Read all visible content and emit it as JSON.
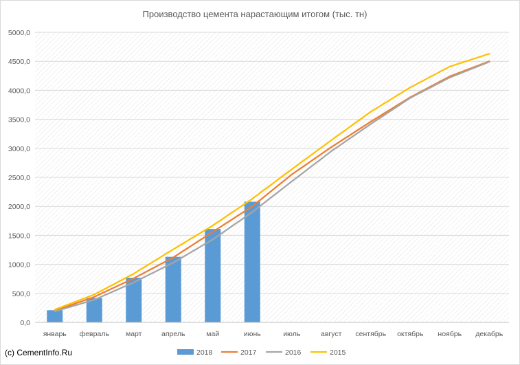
{
  "chart_data": {
    "type": "bar",
    "title": "Производство цемента нарастающим итогом (тыс. тн)",
    "categories": [
      "январь",
      "февраль",
      "март",
      "апрель",
      "май",
      "июнь",
      "июль",
      "август",
      "сентябрь",
      "октябрь",
      "ноябрь",
      "декабрь"
    ],
    "ylim": [
      0,
      5000
    ],
    "yticks": [
      "0,0",
      "500,0",
      "1000,0",
      "1500,0",
      "2000,0",
      "2500,0",
      "3000,0",
      "3500,0",
      "4000,0",
      "4500,0",
      "5000,0"
    ],
    "grid": true,
    "legend_position": "bottom",
    "series": [
      {
        "name": "2018",
        "kind": "bar",
        "color": "#5b9bd5",
        "values": [
          210,
          420,
          770,
          1130,
          1610,
          2080,
          null,
          null,
          null,
          null,
          null,
          null
        ]
      },
      {
        "name": "2017",
        "kind": "line",
        "color": "#ed7d31",
        "values": [
          200,
          440,
          760,
          1120,
          1560,
          2000,
          2550,
          3020,
          3460,
          3880,
          4240,
          4500
        ]
      },
      {
        "name": "2016",
        "kind": "line",
        "color": "#a5a5a5",
        "values": [
          190,
          390,
          690,
          1030,
          1430,
          1900,
          2430,
          2950,
          3420,
          3870,
          4220,
          4490
        ]
      },
      {
        "name": "2015",
        "kind": "line",
        "color": "#ffc000",
        "values": [
          220,
          480,
          840,
          1260,
          1670,
          2130,
          2640,
          3140,
          3630,
          4050,
          4410,
          4630
        ]
      }
    ]
  },
  "copyright": "(c) CementInfo.Ru"
}
